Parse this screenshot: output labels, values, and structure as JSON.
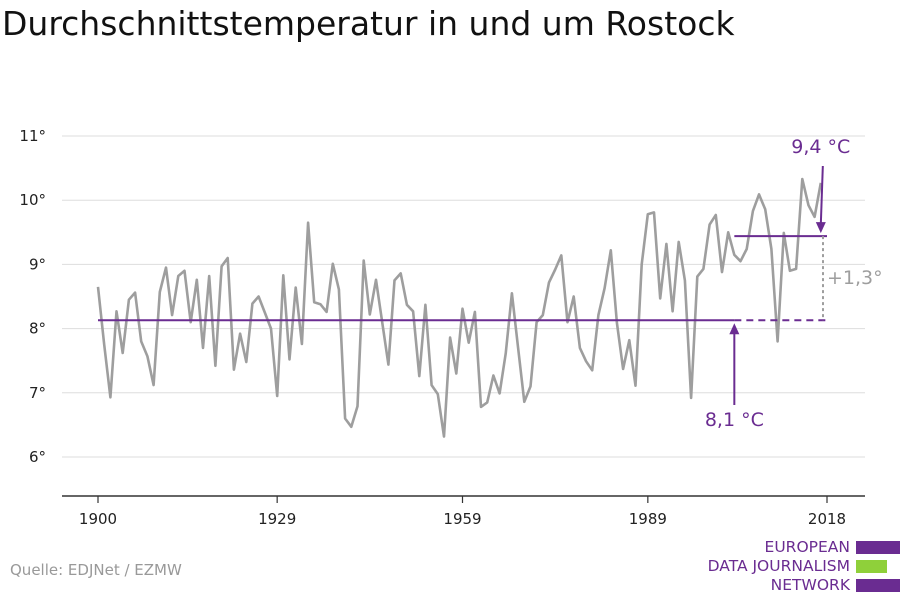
{
  "title": "Durchschnittstemperatur in und um Rostock",
  "source": "Quelle: EDJNet / EZMW",
  "logo": {
    "lines": [
      "EUROPEAN",
      "DATA JOURNALISM",
      "NETWORK"
    ],
    "colors": {
      "purple": "#6a2c91",
      "green": "#8fd03a"
    }
  },
  "colors": {
    "series": "#9e9e9e",
    "accent": "#6a2c91",
    "grid": "#dddddd",
    "axis": "#333333"
  },
  "chart_data": {
    "type": "line",
    "title": "Durchschnittstemperatur in und um Rostock",
    "xlabel": "",
    "ylabel": "",
    "xlim": [
      1900,
      2018
    ],
    "ylim": [
      5.4,
      11.3
    ],
    "x_ticks": [
      1900,
      1929,
      1959,
      1989,
      2018
    ],
    "x_tick_labels": [
      "1900",
      "1929",
      "1959",
      "1989",
      "2018"
    ],
    "y_ticks": [
      6,
      7,
      8,
      9,
      10,
      11
    ],
    "y_tick_labels": [
      "6°",
      "7°",
      "8°",
      "9°",
      "10°",
      "11°"
    ],
    "grid": "horizontal",
    "series": [
      {
        "x_start": 1900,
        "x_step": 1,
        "values": [
          8.65,
          7.75,
          6.93,
          8.27,
          7.62,
          8.45,
          8.56,
          7.8,
          7.57,
          7.12,
          8.57,
          8.95,
          8.21,
          8.82,
          8.9,
          8.1,
          8.76,
          7.7,
          8.82,
          7.42,
          8.97,
          9.1,
          7.36,
          7.92,
          7.48,
          8.39,
          8.5,
          8.25,
          8.0,
          6.95,
          8.83,
          7.52,
          8.64,
          7.76,
          9.65,
          8.41,
          8.38,
          8.26,
          9.01,
          8.61,
          6.6,
          6.47,
          6.79,
          9.06,
          8.22,
          8.76,
          8.1,
          7.44,
          8.75,
          8.86,
          8.37,
          8.27,
          7.26,
          8.37,
          7.12,
          6.98,
          6.32,
          7.86,
          7.3,
          8.31,
          7.78,
          8.26,
          6.78,
          6.85,
          7.27,
          6.99,
          7.61,
          8.55,
          7.7,
          6.86,
          7.1,
          8.1,
          8.21,
          8.72,
          8.92,
          9.14,
          8.1,
          8.5,
          7.7,
          7.49,
          7.35,
          8.21,
          8.63,
          9.22,
          8.09,
          7.37,
          7.82,
          7.11,
          9.0,
          9.78,
          9.81,
          8.47,
          9.32,
          8.27,
          9.35,
          8.75,
          6.92,
          8.81,
          8.93,
          9.62,
          9.77,
          8.88,
          9.5,
          9.15,
          9.05,
          9.24,
          9.83,
          10.09,
          9.86,
          9.24,
          7.8,
          9.49,
          8.9,
          8.93,
          10.33,
          9.92,
          9.74,
          10.27
        ]
      }
    ],
    "reference_lines": [
      {
        "label": "8,1 °C",
        "value": 8.13,
        "solid_x": [
          1900,
          2003
        ],
        "dashed_x": [
          2003,
          2018
        ]
      },
      {
        "label": "9,4 °C",
        "value": 9.44,
        "solid_x": [
          2003,
          2018
        ]
      }
    ],
    "difference_label": "+1,3°"
  }
}
